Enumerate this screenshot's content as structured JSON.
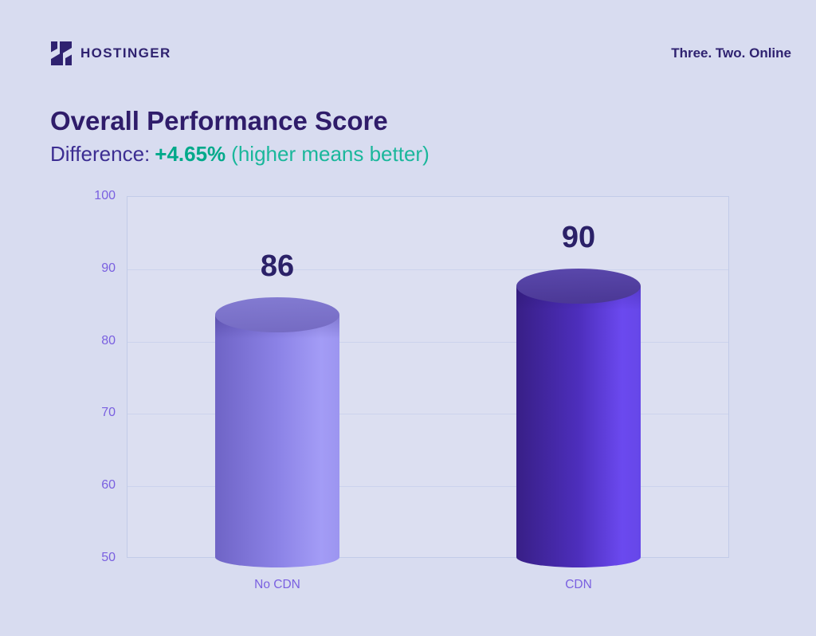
{
  "header": {
    "brand": "HOSTINGER",
    "tagline": "Three. Two. Online"
  },
  "title": "Overall Performance Score",
  "subtitle": {
    "prefix": "Difference:",
    "highlight": "+4.65%",
    "note": "(higher means better)"
  },
  "chart_data": {
    "type": "bar",
    "style": "3d-cylinder",
    "title": "Overall Performance Score",
    "xlabel": "",
    "ylabel": "",
    "categories": [
      "No CDN",
      "CDN"
    ],
    "values": [
      86,
      90
    ],
    "ylim": [
      50,
      100
    ],
    "yticks": [
      100,
      90,
      80,
      70,
      60,
      50
    ],
    "grid": true,
    "legend": false,
    "bar_colors": [
      {
        "top": [
          "#837bd2",
          "#746ac2"
        ],
        "body": [
          "#6f64c6",
          "#8b82e6",
          "#a39cf6",
          "#9c95f0"
        ]
      },
      {
        "top": [
          "#5a48ac",
          "#4a3794"
        ],
        "body": [
          "#381f86",
          "#4d2ebc",
          "#6b49ef",
          "#6647e8"
        ]
      }
    ],
    "value_label_color": "#2b2168",
    "tick_color": "#7a60e0",
    "grid_color": "#ccd3ed",
    "border_color": "#c2cbe8"
  },
  "colors": {
    "background": "#d8dcf0",
    "brand_text": "#2f2270",
    "title": "#2f1c6a",
    "subtitle": "#3c2d92",
    "accent_green": "#00a98a",
    "note_green": "#1ab79b"
  }
}
